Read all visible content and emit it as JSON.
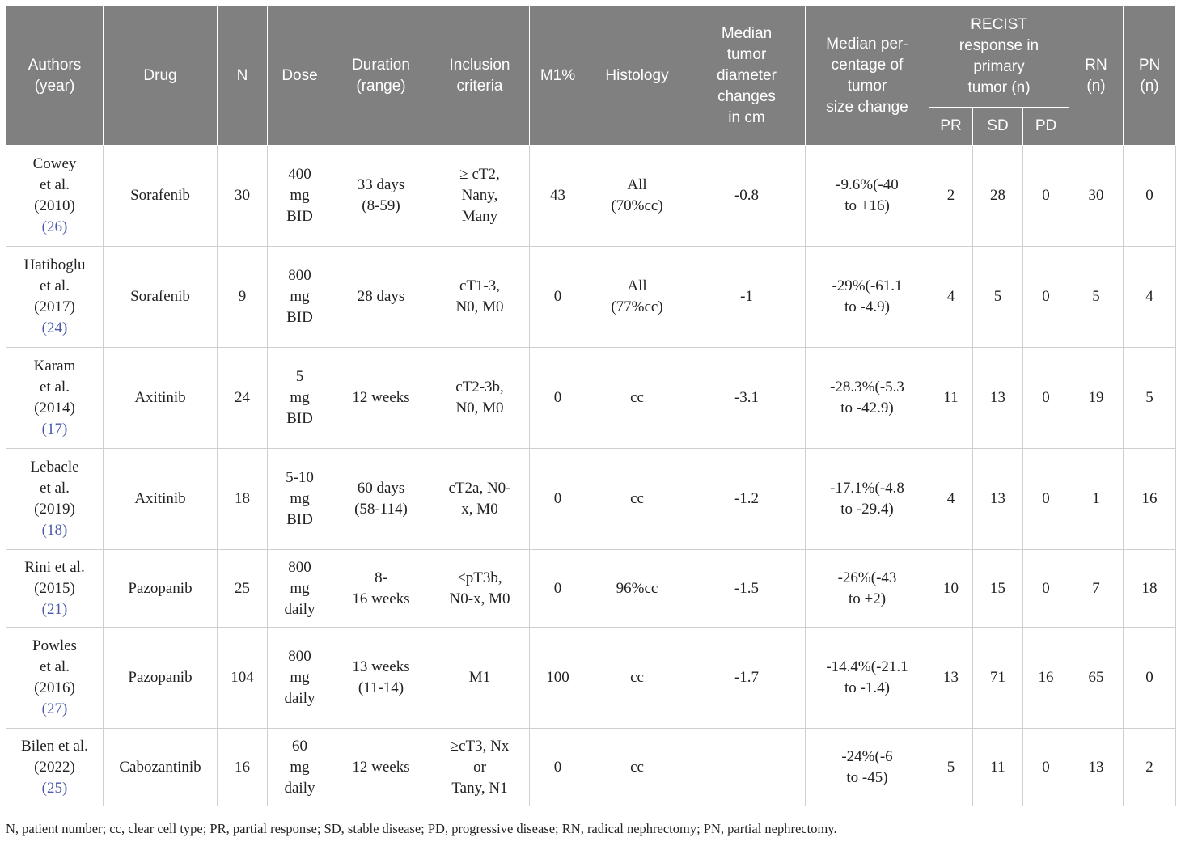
{
  "headers": {
    "authors": [
      "Authors",
      "(year)"
    ],
    "drug": "Drug",
    "n": "N",
    "dose": "Dose",
    "duration": [
      "Duration",
      "(range)"
    ],
    "inclusion": [
      "Inclusion",
      "criteria"
    ],
    "m1": "M1%",
    "histology": "Histology",
    "median_diameter": [
      "Median",
      "tumor",
      "diameter",
      "changes",
      "in cm"
    ],
    "median_pct": [
      "Median per-",
      "centage of",
      "tumor",
      "size change"
    ],
    "recist": [
      "RECIST",
      "response in",
      "primary",
      "tumor (n)"
    ],
    "pr": "PR",
    "sd": "SD",
    "pd": "PD",
    "rn": [
      "RN",
      "(n)"
    ],
    "pn": [
      "PN",
      "(n)"
    ]
  },
  "rows": [
    {
      "authors": [
        "Cowey",
        "et al.",
        "(2010)"
      ],
      "ref": "(26)",
      "drug": "Sorafenib",
      "n": "30",
      "dose": [
        "400",
        "mg",
        "BID"
      ],
      "duration": [
        "33 days",
        "(8-59)"
      ],
      "inclusion": [
        "≥ cT2,",
        "Nany,",
        "Many"
      ],
      "m1": "43",
      "histology": [
        "All",
        "(70%cc)"
      ],
      "diameter": "-0.8",
      "pct": [
        "-9.6%(-40",
        "to +16)"
      ],
      "pr": "2",
      "sd": "28",
      "pd": "0",
      "rn": "30",
      "pn": "0"
    },
    {
      "authors": [
        "Hatiboglu",
        "et al.",
        "(2017)"
      ],
      "ref": "(24)",
      "drug": "Sorafenib",
      "n": "9",
      "dose": [
        "800",
        "mg",
        "BID"
      ],
      "duration": [
        "28 days"
      ],
      "inclusion": [
        "cT1-3,",
        "N0, M0"
      ],
      "m1": "0",
      "histology": [
        "All",
        "(77%cc)"
      ],
      "diameter": "-1",
      "pct": [
        "-29%(-61.1",
        "to -4.9)"
      ],
      "pr": "4",
      "sd": "5",
      "pd": "0",
      "rn": "5",
      "pn": "4"
    },
    {
      "authors": [
        "Karam",
        "et al.",
        "(2014)"
      ],
      "ref": "(17)",
      "drug": "Axitinib",
      "n": "24",
      "dose": [
        "5",
        "mg",
        "BID"
      ],
      "duration": [
        "12 weeks"
      ],
      "inclusion": [
        "cT2-3b,",
        "N0, M0"
      ],
      "m1": "0",
      "histology": [
        "cc"
      ],
      "diameter": "-3.1",
      "pct": [
        "-28.3%(-5.3",
        "to -42.9)"
      ],
      "pr": "11",
      "sd": "13",
      "pd": "0",
      "rn": "19",
      "pn": "5"
    },
    {
      "authors": [
        "Lebacle",
        "et al.",
        "(2019)"
      ],
      "ref": "(18)",
      "drug": "Axitinib",
      "n": "18",
      "dose": [
        "5-10",
        "mg",
        "BID"
      ],
      "duration": [
        "60 days",
        "(58-114)"
      ],
      "inclusion": [
        "cT2a, N0-",
        "x, M0"
      ],
      "m1": "0",
      "histology": [
        "cc"
      ],
      "diameter": "-1.2",
      "pct": [
        "-17.1%(-4.8",
        "to -29.4)"
      ],
      "pr": "4",
      "sd": "13",
      "pd": "0",
      "rn": "1",
      "pn": "16"
    },
    {
      "authors": [
        "Rini et al.",
        "(2015)"
      ],
      "ref": "(21)",
      "drug": "Pazopanib",
      "n": "25",
      "dose": [
        "800",
        "mg",
        "daily"
      ],
      "duration": [
        "8-",
        "16 weeks"
      ],
      "inclusion": [
        "≤pT3b,",
        "N0-x, M0"
      ],
      "m1": "0",
      "histology": [
        "96%cc"
      ],
      "diameter": "-1.5",
      "pct": [
        "-26%(-43",
        "to +2)"
      ],
      "pr": "10",
      "sd": "15",
      "pd": "0",
      "rn": "7",
      "pn": "18"
    },
    {
      "authors": [
        "Powles",
        "et al.",
        "(2016)"
      ],
      "ref": "(27)",
      "drug": "Pazopanib",
      "n": "104",
      "dose": [
        "800",
        "mg",
        "daily"
      ],
      "duration": [
        "13 weeks",
        "(11-14)"
      ],
      "inclusion": [
        "M1"
      ],
      "m1": "100",
      "histology": [
        "cc"
      ],
      "diameter": "-1.7",
      "pct": [
        "-14.4%(-21.1",
        "to -1.4)"
      ],
      "pr": "13",
      "sd": "71",
      "pd": "16",
      "rn": "65",
      "pn": "0"
    },
    {
      "authors": [
        "Bilen et al.",
        "(2022)"
      ],
      "ref": "(25)",
      "drug": "Cabozantinib",
      "n": "16",
      "dose": [
        "60",
        "mg",
        "daily"
      ],
      "duration": [
        "12 weeks"
      ],
      "inclusion": [
        "≥cT3, Nx",
        "or",
        "Tany, N1"
      ],
      "m1": "0",
      "histology": [
        "cc"
      ],
      "diameter": "",
      "pct": [
        "-24%(-6",
        "to -45)"
      ],
      "pr": "5",
      "sd": "11",
      "pd": "0",
      "rn": "13",
      "pn": "2"
    }
  ],
  "footnote": "N, patient number; cc, clear cell type; PR, partial response; SD, stable disease; PD, progressive disease; RN, radical nephrectomy; PN, partial nephrectomy."
}
